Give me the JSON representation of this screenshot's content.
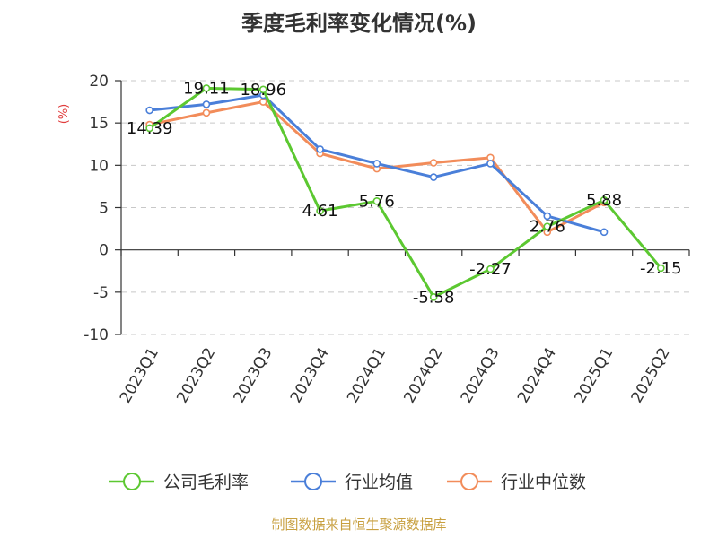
{
  "chart_data": {
    "type": "line",
    "title": "季度毛利率变化情况(%)",
    "ylabel": "(%)",
    "xlabel": "",
    "ylim": [
      -10,
      20
    ],
    "yticks": [
      20,
      15,
      10,
      5,
      0,
      -5,
      -10
    ],
    "grid": true,
    "legend_position": "bottom",
    "categories": [
      "2023Q1",
      "2023Q2",
      "2023Q3",
      "2023Q4",
      "2024Q1",
      "2024Q2",
      "2024Q3",
      "2024Q4",
      "2025Q1",
      "2025Q2"
    ],
    "series": [
      {
        "name": "公司毛利率",
        "color": "#5cc831",
        "values": [
          14.39,
          19.11,
          18.96,
          4.61,
          5.76,
          -5.58,
          -2.27,
          2.76,
          5.88,
          -2.15
        ],
        "labels": [
          "14.39",
          "19.11",
          "18.96",
          "4.61",
          "5.76",
          "-5.58",
          "-2.27",
          "2.76",
          "5.88",
          "-2.15"
        ]
      },
      {
        "name": "行业均值",
        "color": "#4a7fd9",
        "values": [
          16.5,
          17.2,
          18.3,
          11.9,
          10.2,
          8.6,
          10.2,
          4.0,
          2.1,
          null
        ]
      },
      {
        "name": "行业中位数",
        "color": "#f28c5a",
        "values": [
          14.8,
          16.2,
          17.5,
          11.4,
          9.6,
          10.3,
          10.9,
          2.1,
          5.6,
          null
        ]
      }
    ],
    "source": "制图数据来自恒生聚源数据库"
  }
}
